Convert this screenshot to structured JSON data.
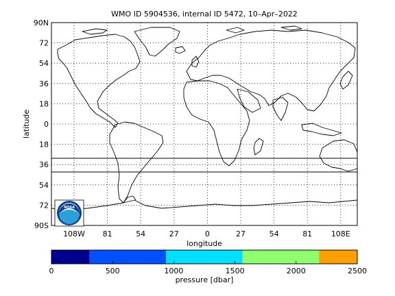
{
  "title": "WMO ID 5904536, internal ID 5472, 10–Apr–2022",
  "map": {
    "xlabel": "longitude",
    "ylabel": "latitude",
    "lat_ticks": [
      "90N",
      "72",
      "54",
      "36",
      "18",
      "0",
      "18",
      "36",
      "54",
      "72",
      "90S"
    ],
    "lon_ticks": [
      "108W",
      "81",
      "54",
      "27",
      "0",
      "27",
      "54",
      "81",
      "108E"
    ],
    "grid": "dotted",
    "colors": {
      "land_outline": "#000000",
      "background": "#ffffff"
    }
  },
  "logo": {
    "text": "NOAA",
    "colors": {
      "outer": "#0a3d8c",
      "ring": "#ffffff",
      "inner": "#2a9fd8"
    }
  },
  "colorbar": {
    "label": "pressure [dbar]",
    "tick_labels": [
      "0",
      "500",
      "1000",
      "1500",
      "2000",
      "2500"
    ],
    "range": [
      0,
      2500
    ],
    "bands": [
      {
        "from": 0,
        "to": 312,
        "color": "#00008f"
      },
      {
        "from": 312,
        "to": 937,
        "color": "#0050ff"
      },
      {
        "from": 937,
        "to": 1562,
        "color": "#00dfff"
      },
      {
        "from": 1562,
        "to": 2187,
        "color": "#8fff70"
      },
      {
        "from": 2187,
        "to": 2500,
        "color": "#ffa000"
      }
    ]
  }
}
